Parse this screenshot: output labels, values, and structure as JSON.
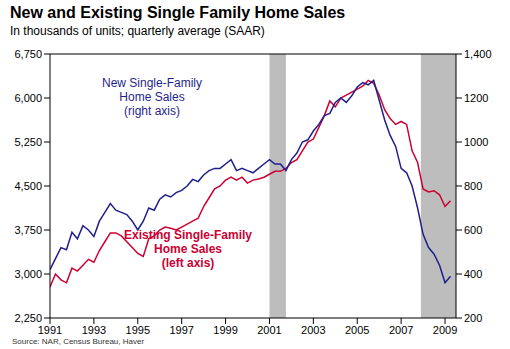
{
  "chart_data": {
    "type": "line",
    "title": "New and Existing Single Family Home Sales",
    "subtitle": "In thousands of units; quarterly average (SAAR)",
    "source": "Source: NAR, Census Bureau, Haver",
    "x": [
      1991,
      1991.25,
      1991.5,
      1991.75,
      1992,
      1992.25,
      1992.5,
      1992.75,
      1993,
      1993.25,
      1993.5,
      1993.75,
      1994,
      1994.25,
      1994.5,
      1994.75,
      1995,
      1995.25,
      1995.5,
      1995.75,
      1996,
      1996.25,
      1996.5,
      1996.75,
      1997,
      1997.25,
      1997.5,
      1997.75,
      1998,
      1998.25,
      1998.5,
      1998.75,
      1999,
      1999.25,
      1999.5,
      1999.75,
      2000,
      2000.25,
      2000.5,
      2000.75,
      2001,
      2001.25,
      2001.5,
      2001.75,
      2002,
      2002.25,
      2002.5,
      2002.75,
      2003,
      2003.25,
      2003.5,
      2003.75,
      2004,
      2004.25,
      2004.5,
      2004.75,
      2005,
      2005.25,
      2005.5,
      2005.75,
      2006,
      2006.25,
      2006.5,
      2006.75,
      2007,
      2007.25,
      2007.5,
      2007.75,
      2008,
      2008.25,
      2008.5,
      2008.75,
      2009,
      2009.25
    ],
    "xlim": [
      1991,
      2009.5
    ],
    "xticks": [
      1991,
      1993,
      1995,
      1997,
      1999,
      2001,
      2003,
      2005,
      2007,
      2009
    ],
    "ylim": [
      2250,
      6750
    ],
    "yticks": [
      {
        "value": 2250,
        "label": "2,250"
      },
      {
        "value": 3000,
        "label": "3,000"
      },
      {
        "value": 3750,
        "label": "3,750"
      },
      {
        "value": 4500,
        "label": "4,500"
      },
      {
        "value": 5250,
        "label": "5,250"
      },
      {
        "value": 6000,
        "label": "6,000"
      },
      {
        "value": 6750,
        "label": "6,750"
      }
    ],
    "y2lim": [
      200,
      1400
    ],
    "y2ticks": [
      200,
      400,
      600,
      800,
      1000,
      1200,
      {
        "value": 1400,
        "label": "1,400"
      }
    ],
    "series": [
      {
        "name": "Existing Single-Family Home Sales",
        "color": "#cc0033",
        "values": [
          2780,
          3000,
          2900,
          2850,
          3100,
          3050,
          3150,
          3250,
          3200,
          3400,
          3550,
          3700,
          3700,
          3650,
          3550,
          3450,
          3350,
          3300,
          3600,
          3650,
          3750,
          3800,
          3780,
          3750,
          3800,
          3850,
          3900,
          3950,
          4150,
          4300,
          4450,
          4500,
          4600,
          4650,
          4600,
          4650,
          4550,
          4600,
          4620,
          4650,
          4700,
          4750,
          4750,
          4800,
          4900,
          4950,
          5100,
          5250,
          5300,
          5500,
          5700,
          5950,
          5850,
          6000,
          6050,
          6100,
          6150,
          6200,
          6300,
          6250,
          6050,
          5800,
          5650,
          5550,
          5600,
          5550,
          5100,
          4900,
          4450,
          4400,
          4420,
          4350,
          4150,
          4250
        ]
      },
      {
        "name": "New Single-Family Home Sales",
        "color": "#1f1f8c",
        "axis": "y2",
        "values": [
          420,
          470,
          520,
          510,
          590,
          560,
          620,
          600,
          570,
          640,
          680,
          720,
          690,
          680,
          670,
          640,
          600,
          640,
          700,
          690,
          740,
          760,
          750,
          770,
          780,
          800,
          830,
          820,
          850,
          870,
          880,
          880,
          900,
          920,
          870,
          880,
          870,
          860,
          880,
          900,
          920,
          900,
          900,
          870,
          920,
          950,
          1000,
          1010,
          1050,
          1080,
          1120,
          1130,
          1180,
          1200,
          1180,
          1210,
          1250,
          1270,
          1260,
          1280,
          1190,
          1100,
          1030,
          980,
          880,
          860,
          800,
          700,
          580,
          520,
          490,
          440,
          360,
          390
        ]
      }
    ],
    "annotations": [
      {
        "text": [
          "New Single-Family",
          "Home Sales",
          "(right axis)"
        ],
        "color": "#1f1f8c"
      },
      {
        "text": [
          "Existing Single-Family",
          "Home Sales",
          "(left axis)"
        ],
        "color": "#cc0033"
      }
    ],
    "shaded_ranges": [
      [
        2001,
        2001.75
      ],
      [
        2007.9,
        2009.5
      ]
    ]
  }
}
